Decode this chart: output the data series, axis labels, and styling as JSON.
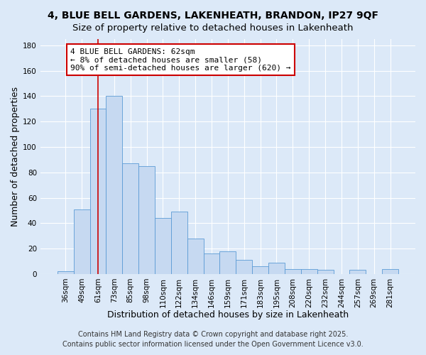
{
  "title": "4, BLUE BELL GARDENS, LAKENHEATH, BRANDON, IP27 9QF",
  "subtitle": "Size of property relative to detached houses in Lakenheath",
  "xlabel": "Distribution of detached houses by size in Lakenheath",
  "ylabel": "Number of detached properties",
  "bar_labels": [
    "36sqm",
    "49sqm",
    "61sqm",
    "73sqm",
    "85sqm",
    "98sqm",
    "110sqm",
    "122sqm",
    "134sqm",
    "146sqm",
    "159sqm",
    "171sqm",
    "183sqm",
    "195sqm",
    "208sqm",
    "220sqm",
    "232sqm",
    "244sqm",
    "257sqm",
    "269sqm",
    "281sqm"
  ],
  "bar_values": [
    2,
    51,
    130,
    140,
    87,
    85,
    44,
    49,
    28,
    16,
    18,
    11,
    6,
    9,
    4,
    4,
    3,
    0,
    3,
    0,
    4
  ],
  "bar_color": "#c6d9f1",
  "bar_edge_color": "#5b9bd5",
  "vline_x_index": 2,
  "vline_color": "#cc0000",
  "annotation_text": "4 BLUE BELL GARDENS: 62sqm\n← 8% of detached houses are smaller (58)\n90% of semi-detached houses are larger (620) →",
  "annotation_box_color": "#ffffff",
  "annotation_box_edge": "#cc0000",
  "ylim": [
    0,
    185
  ],
  "yticks": [
    0,
    20,
    40,
    60,
    80,
    100,
    120,
    140,
    160,
    180
  ],
  "footer1": "Contains HM Land Registry data © Crown copyright and database right 2025.",
  "footer2": "Contains public sector information licensed under the Open Government Licence v3.0.",
  "background_color": "#dce9f8",
  "plot_background": "#dce9f8",
  "title_fontsize": 10,
  "axis_label_fontsize": 9,
  "tick_fontsize": 7.5,
  "annotation_fontsize": 8,
  "footer_fontsize": 7
}
